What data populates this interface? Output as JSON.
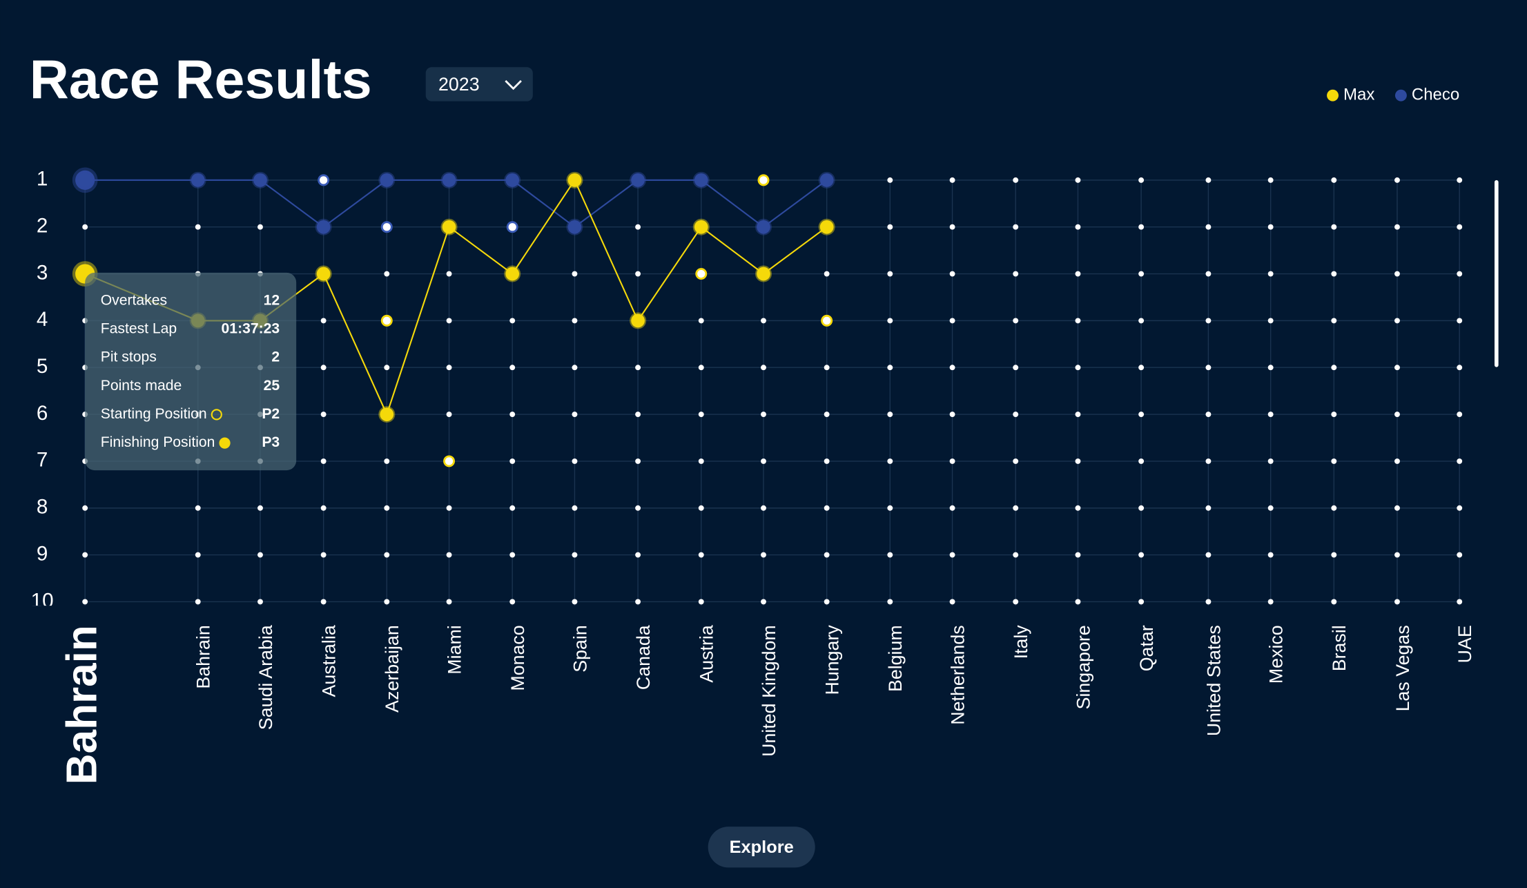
{
  "title": "Race Results",
  "year_selector": "2023",
  "selected_race": "Bahrain",
  "tooltip": {
    "rows": [
      {
        "label": "Overtakes",
        "value": "12"
      },
      {
        "label": "Fastest Lap",
        "value": "01:37:23"
      },
      {
        "label": "Pit stops",
        "value": "2"
      },
      {
        "label": "Points made",
        "value": "25"
      },
      {
        "label": "Starting Position",
        "value": "P2"
      },
      {
        "label": "Finishing Position",
        "value": "P3"
      }
    ]
  },
  "button": "Explore",
  "chart_data": {
    "type": "line",
    "categories": [
      "Bahrain",
      "Bahrain",
      "Saudi Arabia",
      "Australia",
      "Azerbaijan",
      "Miami",
      "Monaco",
      "Spain",
      "Canada",
      "Austria",
      "United Kingdom",
      "Hungary",
      "Belgium",
      "Netherlands",
      "Italy",
      "Singapore",
      "Qatar",
      "United States",
      "Mexico",
      "Brasil",
      "Las Vegas",
      "UAE"
    ],
    "series": [
      {
        "name": "Max",
        "color": "#f5d90a",
        "values": [
          3,
          4,
          4,
          3,
          6,
          2,
          3,
          1,
          4,
          2,
          3,
          2,
          null,
          null,
          null,
          null,
          null,
          null,
          null,
          null,
          null,
          null
        ],
        "start": [
          null,
          null,
          null,
          null,
          4,
          7,
          null,
          null,
          null,
          3,
          1,
          4,
          null,
          null,
          null,
          null,
          null,
          null,
          null,
          null,
          null,
          null
        ]
      },
      {
        "name": "Checo",
        "color": "#2e4a9e",
        "values": [
          1,
          1,
          1,
          2,
          1,
          1,
          1,
          2,
          1,
          1,
          2,
          1,
          null,
          null,
          null,
          null,
          null,
          null,
          null,
          null,
          null,
          null
        ],
        "start": [
          null,
          null,
          null,
          1,
          2,
          null,
          2,
          null,
          null,
          null,
          null,
          null,
          null,
          null,
          null,
          null,
          null,
          null,
          null,
          null,
          null,
          null
        ]
      }
    ],
    "ylim": [
      1,
      10
    ],
    "yticks": [
      1,
      2,
      3,
      4,
      5,
      6,
      7,
      8,
      9,
      10
    ],
    "y_inverted": true,
    "grid": true,
    "legend": "top-right"
  }
}
